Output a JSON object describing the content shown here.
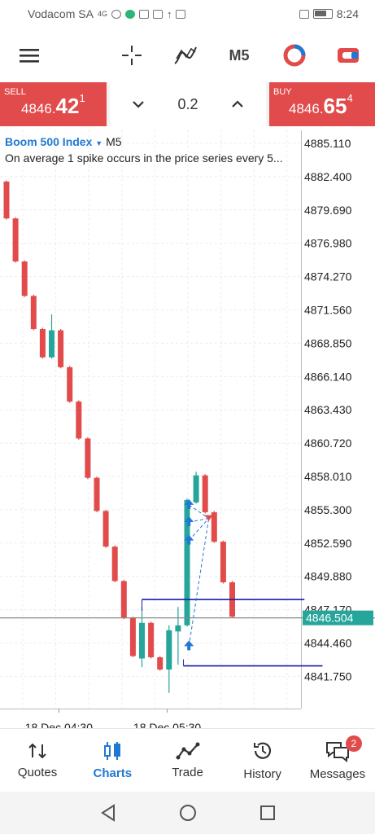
{
  "status_bar": {
    "carrier": "Vodacom SA",
    "network": "4G",
    "time": "8:24"
  },
  "toolbar": {
    "timeframe": "M5",
    "icons": [
      "menu-icon",
      "crosshair-icon",
      "indicators-icon",
      "chart-color-icon",
      "trade-toggle-icon"
    ]
  },
  "trade": {
    "sell_label": "SELL",
    "sell_prefix": "4846.",
    "sell_big": "42",
    "sell_sup": "1",
    "buy_label": "BUY",
    "buy_prefix": "4846.",
    "buy_big": "65",
    "buy_sup": "4",
    "volume": "0.2"
  },
  "chart": {
    "symbol": "Boom 500 Index",
    "timeframe": "M5",
    "description": "On average 1 spike occurs in the price series every 5...",
    "current_price": "4846.504",
    "price_color": "#26a69a",
    "bear_color": "#e24b4b",
    "bull_color": "#26a69a",
    "level_color": "#1a1aa8"
  },
  "chart_data": {
    "type": "candlestick",
    "y_ticks": [
      "4885.110",
      "4882.400",
      "4879.690",
      "4876.980",
      "4874.270",
      "4871.560",
      "4868.850",
      "4866.140",
      "4863.430",
      "4860.720",
      "4858.010",
      "4855.300",
      "4852.590",
      "4849.880",
      "4847.170",
      "4844.460",
      "4841.750"
    ],
    "ylim": [
      4839.0,
      4887.0
    ],
    "x_ticks": [
      {
        "label": "18 Dec 04:30",
        "index": 5.8
      },
      {
        "label": "18 Dec 05:30",
        "index": 17.8
      }
    ],
    "candles": [
      {
        "o": 4882.0,
        "h": 4882.1,
        "c": 4879.0,
        "l": 4878.9
      },
      {
        "o": 4879.0,
        "h": 4879.1,
        "c": 4875.5,
        "l": 4875.4
      },
      {
        "o": 4875.5,
        "h": 4875.6,
        "c": 4872.7,
        "l": 4872.6
      },
      {
        "o": 4872.7,
        "h": 4872.8,
        "c": 4870.0,
        "l": 4869.9
      },
      {
        "o": 4870.0,
        "h": 4870.1,
        "c": 4867.7,
        "l": 4867.6
      },
      {
        "o": 4867.7,
        "h": 4871.2,
        "c": 4869.9,
        "l": 4867.6
      },
      {
        "o": 4869.9,
        "h": 4870.0,
        "c": 4866.9,
        "l": 4866.8
      },
      {
        "o": 4866.9,
        "h": 4867.0,
        "c": 4864.1,
        "l": 4864.0
      },
      {
        "o": 4864.1,
        "h": 4864.2,
        "c": 4861.1,
        "l": 4861.0
      },
      {
        "o": 4861.1,
        "h": 4861.2,
        "c": 4857.9,
        "l": 4857.8
      },
      {
        "o": 4857.9,
        "h": 4858.0,
        "c": 4855.2,
        "l": 4855.1
      },
      {
        "o": 4855.2,
        "h": 4855.3,
        "c": 4852.3,
        "l": 4852.2
      },
      {
        "o": 4852.3,
        "h": 4852.4,
        "c": 4849.5,
        "l": 4849.4
      },
      {
        "o": 4849.5,
        "h": 4849.6,
        "c": 4846.5,
        "l": 4846.4
      },
      {
        "o": 4846.5,
        "h": 4846.6,
        "c": 4843.4,
        "l": 4843.3
      },
      {
        "o": 4843.2,
        "h": 4847.4,
        "c": 4846.1,
        "l": 4842.5
      },
      {
        "o": 4846.1,
        "h": 4846.2,
        "c": 4843.3,
        "l": 4843.2
      },
      {
        "o": 4843.3,
        "h": 4843.4,
        "c": 4842.3,
        "l": 4842.2
      },
      {
        "o": 4842.3,
        "h": 4845.9,
        "c": 4845.5,
        "l": 4840.4
      },
      {
        "o": 4845.4,
        "h": 4847.4,
        "c": 4845.9,
        "l": 4842.7
      },
      {
        "o": 4845.9,
        "h": 4856.2,
        "c": 4856.1,
        "l": 4845.8
      },
      {
        "o": 4855.9,
        "h": 4858.4,
        "c": 4858.1,
        "l": 4855.8
      },
      {
        "o": 4858.1,
        "h": 4858.2,
        "c": 4855.1,
        "l": 4855.0
      },
      {
        "o": 4855.1,
        "h": 4855.2,
        "c": 4852.7,
        "l": 4852.6
      },
      {
        "o": 4852.7,
        "h": 4852.8,
        "c": 4849.4,
        "l": 4849.3
      },
      {
        "o": 4849.4,
        "h": 4849.5,
        "c": 4846.6,
        "l": 4846.5
      }
    ],
    "levels": [
      {
        "price": 4848.0,
        "from": 15.0,
        "to": 33.0
      },
      {
        "price": 4842.6,
        "from": 19.6,
        "to": 35.0
      }
    ]
  },
  "nav": {
    "items": [
      {
        "label": "Quotes",
        "icon": "quotes-icon",
        "active": false
      },
      {
        "label": "Charts",
        "icon": "charts-icon",
        "active": true
      },
      {
        "label": "Trade",
        "icon": "trade-icon",
        "active": false
      },
      {
        "label": "History",
        "icon": "history-icon",
        "active": false
      },
      {
        "label": "Messages",
        "icon": "messages-icon",
        "active": false
      }
    ],
    "messages_badge": "2"
  }
}
